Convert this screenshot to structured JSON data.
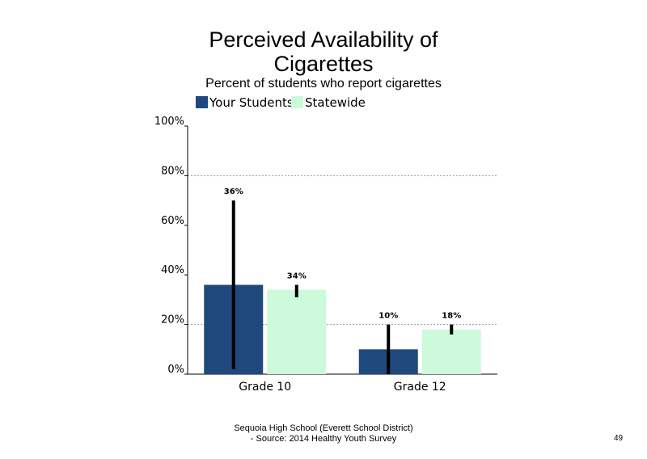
{
  "chart_data": {
    "type": "bar",
    "title_lines": [
      "Perceived Availability of",
      "Cigarettes"
    ],
    "subtitle": "Percent of students who report cigarettes",
    "categories": [
      "Grade 10",
      "Grade 12"
    ],
    "series": [
      {
        "name": "Your Students",
        "color": "#1f497d",
        "values": [
          36,
          10
        ],
        "labels": [
          "36%",
          "10%"
        ],
        "error_low": [
          2,
          0
        ],
        "error_high": [
          70,
          20
        ]
      },
      {
        "name": "Statewide",
        "color": "#ccfadb",
        "values": [
          34,
          18
        ],
        "labels": [
          "34%",
          "18%"
        ],
        "error_low": [
          31,
          16
        ],
        "error_high": [
          36,
          20
        ]
      }
    ],
    "ylim": [
      0,
      100
    ],
    "yticks": [
      0,
      20,
      40,
      60,
      80,
      100
    ],
    "ytick_labels": [
      "0%",
      "20%",
      "40%",
      "60%",
      "80%",
      "100%"
    ],
    "gridlines": [
      20,
      80
    ],
    "legend_position": "top-left"
  },
  "footer": {
    "line1": "Sequoia High School (Everett School District)",
    "line2": "- Source: 2014 Healthy Youth Survey"
  },
  "page_number": "49"
}
